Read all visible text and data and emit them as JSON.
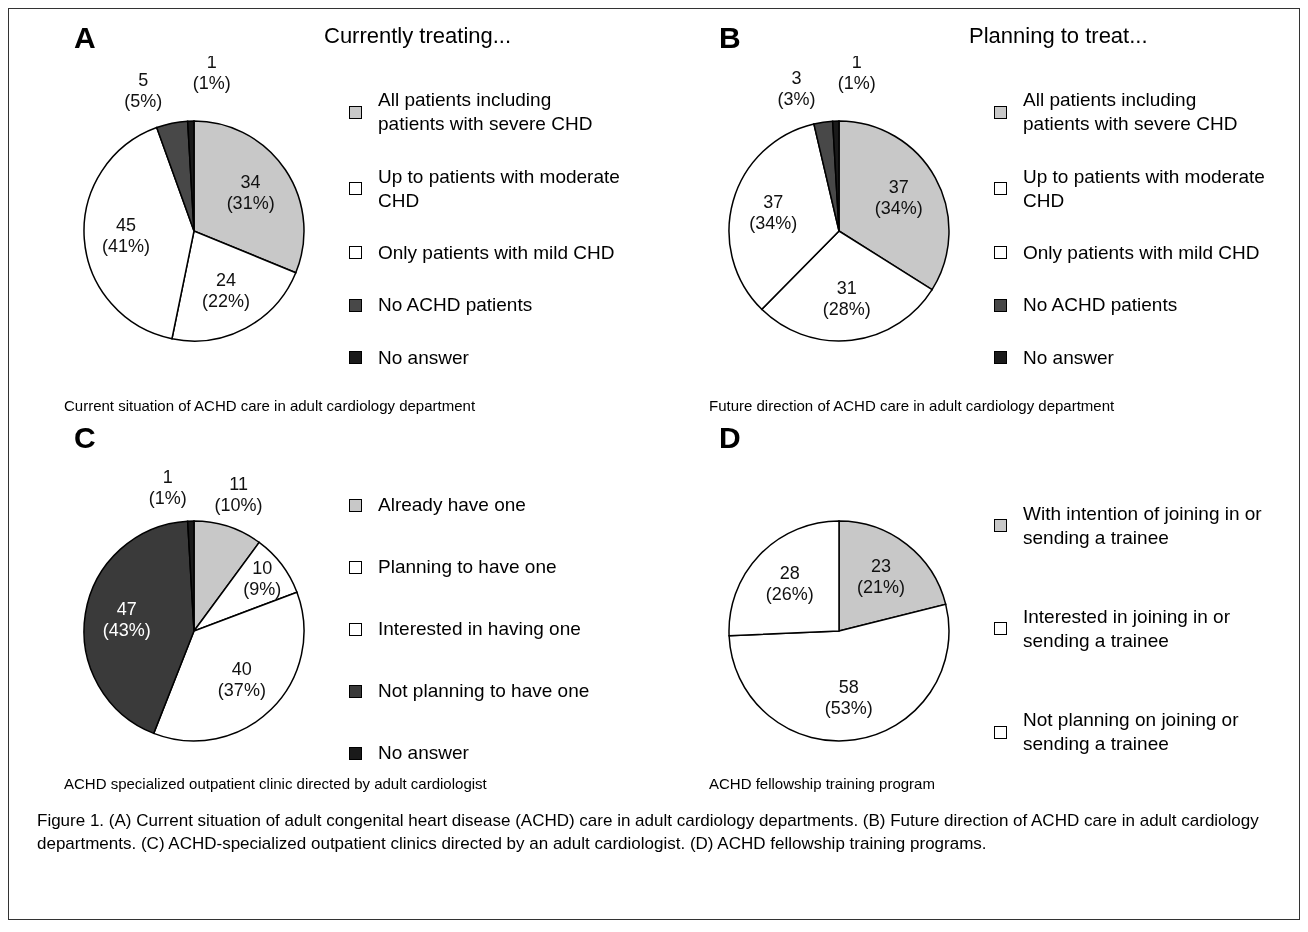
{
  "chart_data": [
    {
      "type": "pie",
      "title": "A",
      "legend_title": "Currently treating...",
      "subtitle": "Current situation of ACHD care in adult cardiology department",
      "legend": "right",
      "categories": [
        "All patients including patients with severe CHD",
        "Up to patients with moderate CHD",
        "Only patients with mild CHD",
        "No ACHD patients",
        "No answer"
      ],
      "values": [
        34,
        24,
        45,
        5,
        1
      ],
      "colors": [
        "#c8c8c8",
        "#ffffff",
        "#ffffff",
        "#484848",
        "#1a1a1a"
      ],
      "value_labels": [
        "34 (31%)",
        "24 (22%)",
        "45 (41%)",
        "5 (5%)",
        "1 (1%)"
      ]
    },
    {
      "type": "pie",
      "title": "B",
      "legend_title": "Planning to treat...",
      "subtitle": "Future direction of ACHD care in adult cardiology department",
      "legend": "right",
      "categories": [
        "All patients including patients with severe CHD",
        "Up to patients with moderate CHD",
        "Only patients with mild CHD",
        "No ACHD patients",
        "No answer"
      ],
      "values": [
        37,
        31,
        37,
        3,
        1
      ],
      "colors": [
        "#c8c8c8",
        "#ffffff",
        "#ffffff",
        "#484848",
        "#1a1a1a"
      ],
      "value_labels": [
        "37 (34%)",
        "31 (28%)",
        "37 (34%)",
        "3 (3%)",
        "1 (1%)"
      ]
    },
    {
      "type": "pie",
      "title": "C",
      "subtitle": "ACHD specialized outpatient clinic directed by adult cardiologist",
      "legend": "right",
      "categories": [
        "Already have one",
        "Planning to have one",
        "Interested in having one",
        "Not planning to have one",
        "No answer"
      ],
      "values": [
        11,
        10,
        40,
        47,
        1
      ],
      "colors": [
        "#c8c8c8",
        "#ffffff",
        "#ffffff",
        "#3a3a3a",
        "#1a1a1a"
      ],
      "value_labels": [
        "11 (10%)",
        "10 (9%)",
        "40 (37%)",
        "47 (43%)",
        "1 (1%)"
      ]
    },
    {
      "type": "pie",
      "title": "D",
      "subtitle": "ACHD fellowship training program",
      "legend": "right",
      "categories": [
        "With intention of joining in or sending a trainee",
        "Interested in joining in or sending a trainee",
        "Not planning on joining or sending a trainee"
      ],
      "values": [
        23,
        58,
        28
      ],
      "colors": [
        "#c8c8c8",
        "#ffffff",
        "#ffffff"
      ],
      "value_labels": [
        "23 (21%)",
        "58 (53%)",
        "28 (26%)"
      ]
    },
    {
      "type": "other",
      "annotations": [
        "Figure 1. (A) Current situation of adult congenital heart disease (ACHD) care in adult cardiology departments. (B) Future direction of ACHD care in adult cardiology departments. (C) ACHD-specialized outpatient clinics directed by an adult cardiologist. (D) ACHD fellowship training programs."
      ]
    }
  ]
}
